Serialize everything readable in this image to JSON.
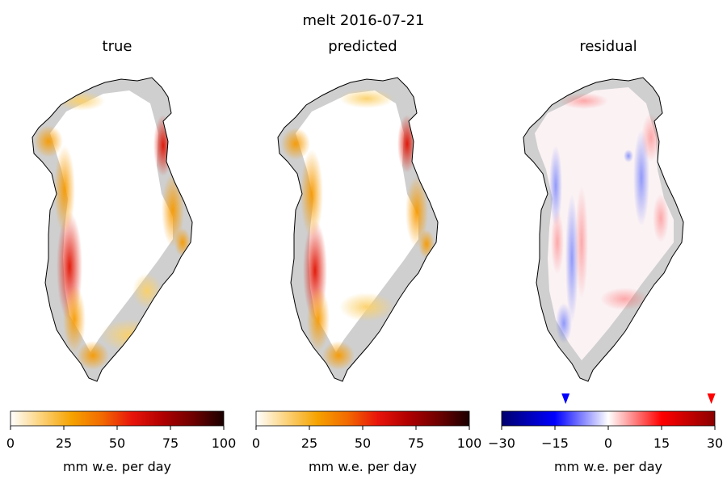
{
  "figure_title": "melt 2016-07-21",
  "chart_data": [
    {
      "type": "heatmap",
      "title": "true",
      "colormap": "white-orange-red-black",
      "colorbar": {
        "label": "mm w.e. per day",
        "range": [
          0,
          100
        ],
        "ticks": [
          0,
          25,
          50,
          75,
          100
        ],
        "tick_labels": [
          "0",
          "25",
          "50",
          "75",
          "100"
        ],
        "stops": [
          "#ffffff",
          "#fcd27a",
          "#f5a300",
          "#f26a00",
          "#e8140a",
          "#b00000",
          "#6e0000",
          "#1a0000"
        ]
      }
    },
    {
      "type": "heatmap",
      "title": "predicted",
      "colormap": "white-orange-red-black",
      "colorbar": {
        "label": "mm w.e. per day",
        "range": [
          0,
          100
        ],
        "ticks": [
          0,
          25,
          50,
          75,
          100
        ],
        "tick_labels": [
          "0",
          "25",
          "50",
          "75",
          "100"
        ],
        "stops": [
          "#ffffff",
          "#fcd27a",
          "#f5a300",
          "#f26a00",
          "#e8140a",
          "#b00000",
          "#6e0000",
          "#1a0000"
        ]
      }
    },
    {
      "type": "heatmap",
      "title": "residual",
      "colormap": "diverging blue-white-red",
      "colorbar": {
        "label": "mm w.e. per day",
        "range": [
          -30,
          30
        ],
        "ticks": [
          -30,
          -15,
          0,
          15,
          30
        ],
        "tick_labels": [
          "−30",
          "−15",
          "0",
          "15",
          "30"
        ],
        "stops": [
          "#00006e",
          "#0000ff",
          "#ffffff",
          "#ff0000",
          "#8b0000"
        ],
        "markers": [
          {
            "value": -12,
            "color": "#0000ff"
          },
          {
            "value": 29,
            "color": "#ff0000"
          }
        ]
      }
    }
  ]
}
